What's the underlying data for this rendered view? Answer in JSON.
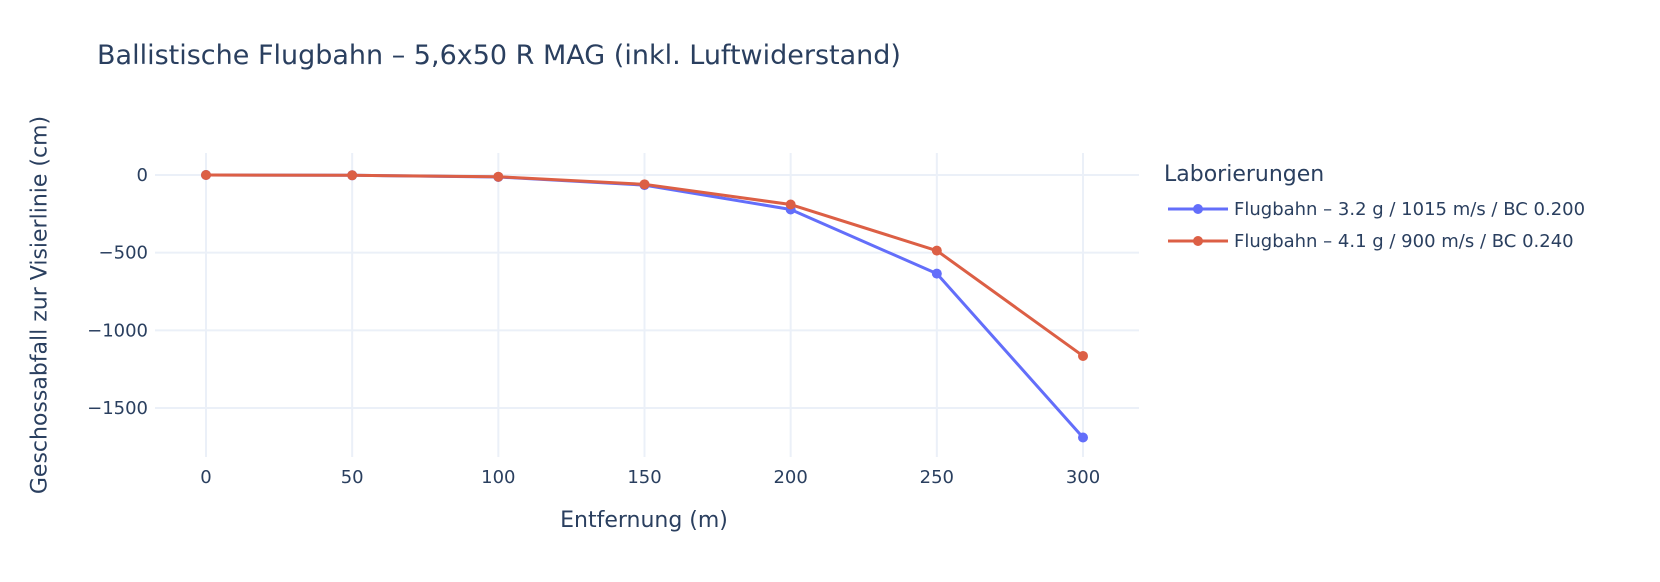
{
  "chart_data": {
    "type": "line",
    "title": "Ballistische Flugbahn – 5,6x50 R MAG (inkl. Luftwiderstand)",
    "xlabel": "Entfernung (m)",
    "ylabel": "Geschossabfall zur Visierlinie (cm)",
    "x": [
      0,
      50,
      100,
      150,
      200,
      250,
      300
    ],
    "x_ticks": [
      "0",
      "50",
      "100",
      "150",
      "200",
      "250",
      "300"
    ],
    "y_ticks": [
      "0",
      "−500",
      "−1000",
      "−1500"
    ],
    "y_tick_values": [
      0,
      -500,
      -1000,
      -1500
    ],
    "xlim": [
      -15,
      320
    ],
    "ylim": [
      -1800,
      140
    ],
    "grid": true,
    "legend_position": "right",
    "legend_title": "Laborierungen",
    "series": [
      {
        "name": "Flugbahn – 3.2 g / 1015 m/s / BC 0.200",
        "color": "#636efa",
        "values": [
          0,
          -2,
          -13,
          -65,
          -222,
          -635,
          -1690
        ]
      },
      {
        "name": "Flugbahn – 4.1 g / 900 m/s / BC 0.240",
        "color": "#dc5f45",
        "values": [
          0,
          -2,
          -11,
          -60,
          -190,
          -487,
          -1165
        ]
      }
    ]
  },
  "colors": {
    "text": "#2a3f5f",
    "grid": "#ebf0f8",
    "background": "#ffffff"
  }
}
